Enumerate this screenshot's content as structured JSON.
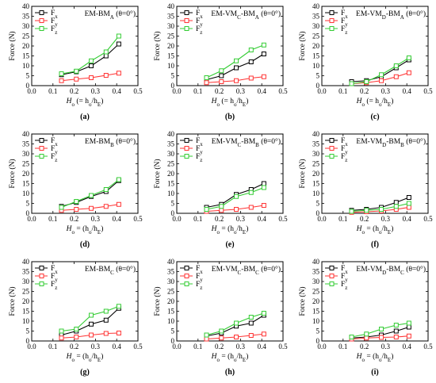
{
  "chart_data": [
    {
      "type": "line",
      "panel_label": "(a)",
      "title": "EM-BM",
      "title_sub": "A",
      "title_tail": " (θ=0°)",
      "ylabel": "Force (N)",
      "xlabel": "H",
      "xlabel_sub": "o",
      "xlabel_tail": " (= h",
      "xlabel_sub2": "o",
      "xlabel_tail2": "/h",
      "xlabel_sub3": "E",
      "xlabel_tail3": ")",
      "xlim": [
        0.0,
        0.5
      ],
      "ylim": [
        0,
        40
      ],
      "xticks": [
        "0.0",
        "0.1",
        "0.2",
        "0.3",
        "0.4",
        "0.5"
      ],
      "yticks": [
        "0",
        "5",
        "10",
        "15",
        "20",
        "25",
        "30",
        "35",
        "40"
      ],
      "legend_position": "top-left",
      "series": [
        {
          "name": "F",
          "sub": "x",
          "color": "#000000",
          "x": [
            0.14,
            0.21,
            0.28,
            0.35,
            0.41
          ],
          "y": [
            5.5,
            7.0,
            10.0,
            15.0,
            21.0
          ]
        },
        {
          "name": "F",
          "sub": "y",
          "color": "#ff3333",
          "x": [
            0.14,
            0.21,
            0.28,
            0.35,
            0.41
          ],
          "y": [
            2.5,
            3.3,
            4.0,
            5.2,
            6.3
          ]
        },
        {
          "name": "F",
          "sub": "z",
          "color": "#33cc33",
          "x": [
            0.14,
            0.21,
            0.28,
            0.35,
            0.41
          ],
          "y": [
            6.0,
            7.3,
            12.5,
            17.0,
            25.0
          ]
        }
      ]
    },
    {
      "type": "line",
      "panel_label": "(b)",
      "title": "EM-VM",
      "title_sub": "C",
      "title_tail": "-BM",
      "title_sub2": "A",
      "title_tail2": " (θ=0°)",
      "ylabel": "Force (N)",
      "xlabel": "H",
      "xlabel_sub": "o",
      "xlabel_tail": " (= h",
      "xlabel_sub2": "o",
      "xlabel_tail2": "/h",
      "xlabel_sub3": "E",
      "xlabel_tail3": ")",
      "xlim": [
        0.0,
        0.5
      ],
      "ylim": [
        0,
        40
      ],
      "xticks": [
        "0.0",
        "0.1",
        "0.2",
        "0.3",
        "0.4",
        "0.5"
      ],
      "yticks": [
        "0",
        "5",
        "10",
        "15",
        "20",
        "25",
        "30",
        "35",
        "40"
      ],
      "legend_position": "top-left",
      "series": [
        {
          "name": "F",
          "sub": "x",
          "color": "#000000",
          "x": [
            0.14,
            0.21,
            0.28,
            0.35,
            0.41
          ],
          "y": [
            3.0,
            5.0,
            9.0,
            12.0,
            16.0
          ]
        },
        {
          "name": "F",
          "sub": "y",
          "color": "#ff3333",
          "x": [
            0.14,
            0.21,
            0.28,
            0.35,
            0.41
          ],
          "y": [
            1.5,
            2.0,
            2.5,
            3.8,
            4.5
          ]
        },
        {
          "name": "F",
          "sub": "z",
          "color": "#33cc33",
          "x": [
            0.14,
            0.21,
            0.28,
            0.35,
            0.41
          ],
          "y": [
            4.0,
            7.5,
            12.5,
            18.0,
            20.5
          ]
        }
      ]
    },
    {
      "type": "line",
      "panel_label": "(c)",
      "title": "EM-VM",
      "title_sub": "D",
      "title_tail": "-BM",
      "title_sub2": "A",
      "title_tail2": " (θ=0°)",
      "ylabel": "Force (N)",
      "xlabel": "H",
      "xlabel_sub": "o",
      "xlabel_tail": " (= h",
      "xlabel_sub2": "o",
      "xlabel_tail2": "/h",
      "xlabel_sub3": "E",
      "xlabel_tail3": ")",
      "xlim": [
        0.0,
        0.5
      ],
      "ylim": [
        0,
        40
      ],
      "xticks": [
        "0.0",
        "0.1",
        "0.2",
        "0.3",
        "0.4",
        "0.5"
      ],
      "yticks": [
        "0",
        "5",
        "10",
        "15",
        "20",
        "25",
        "30",
        "35",
        "40"
      ],
      "legend_position": "top-left",
      "series": [
        {
          "name": "F",
          "sub": "x",
          "color": "#000000",
          "x": [
            0.14,
            0.21,
            0.28,
            0.35,
            0.41
          ],
          "y": [
            2.0,
            2.5,
            4.5,
            9.0,
            13.0
          ]
        },
        {
          "name": "F",
          "sub": "y",
          "color": "#ff3333",
          "x": [
            0.14,
            0.21,
            0.28,
            0.35,
            0.41
          ],
          "y": [
            1.0,
            1.5,
            2.5,
            4.5,
            6.5
          ]
        },
        {
          "name": "F",
          "sub": "z",
          "color": "#33cc33",
          "x": [
            0.14,
            0.21,
            0.28,
            0.35,
            0.41
          ],
          "y": [
            1.0,
            2.0,
            5.5,
            10.0,
            14.0
          ]
        }
      ]
    },
    {
      "type": "line",
      "panel_label": "(d)",
      "title": "EM-BM",
      "title_sub": "B",
      "title_tail": " (θ=0°)",
      "ylabel": "Force (N)",
      "xlabel": "H",
      "xlabel_sub": "o",
      "xlabel_tail": " = (h",
      "xlabel_sub2": "o",
      "xlabel_tail2": "/h",
      "xlabel_sub3": "E",
      "xlabel_tail3": ")",
      "xlim": [
        0.0,
        0.5
      ],
      "ylim": [
        0,
        40
      ],
      "xticks": [
        "0.0",
        "0.1",
        "0.2",
        "0.3",
        "0.4",
        "0.5"
      ],
      "yticks": [
        "0",
        "5",
        "10",
        "15",
        "20",
        "25",
        "30",
        "35",
        "40"
      ],
      "legend_position": "top-left",
      "series": [
        {
          "name": "F",
          "sub": "x",
          "color": "#000000",
          "x": [
            0.14,
            0.21,
            0.28,
            0.35,
            0.41
          ],
          "y": [
            3.5,
            5.5,
            8.5,
            11.0,
            16.5
          ]
        },
        {
          "name": "F",
          "sub": "y",
          "color": "#ff3333",
          "x": [
            0.14,
            0.21,
            0.28,
            0.35,
            0.41
          ],
          "y": [
            1.5,
            2.0,
            2.5,
            3.5,
            4.5
          ]
        },
        {
          "name": "F",
          "sub": "z",
          "color": "#33cc33",
          "x": [
            0.14,
            0.21,
            0.28,
            0.35,
            0.41
          ],
          "y": [
            3.0,
            6.0,
            9.0,
            12.0,
            17.0
          ]
        }
      ]
    },
    {
      "type": "line",
      "panel_label": "(e)",
      "title": "EM-VM",
      "title_sub": "C",
      "title_tail": "-BM",
      "title_sub2": "B",
      "title_tail2": " (θ=0°)",
      "ylabel": "Force (N)",
      "xlabel": "H",
      "xlabel_sub": "o",
      "xlabel_tail": " = (h",
      "xlabel_sub2": "o",
      "xlabel_tail2": "/h",
      "xlabel_sub3": "E",
      "xlabel_tail3": ")",
      "xlim": [
        0.0,
        0.5
      ],
      "ylim": [
        0,
        40
      ],
      "xticks": [
        "0.0",
        "0.1",
        "0.2",
        "0.3",
        "0.4",
        "0.5"
      ],
      "yticks": [
        "0",
        "5",
        "10",
        "15",
        "20",
        "25",
        "30",
        "35",
        "40"
      ],
      "legend_position": "top-left",
      "series": [
        {
          "name": "F",
          "sub": "x",
          "color": "#000000",
          "x": [
            0.14,
            0.21,
            0.28,
            0.35,
            0.41
          ],
          "y": [
            3.0,
            4.5,
            9.5,
            12.0,
            15.0
          ]
        },
        {
          "name": "F",
          "sub": "y",
          "color": "#ff3333",
          "x": [
            0.14,
            0.21,
            0.28,
            0.35,
            0.41
          ],
          "y": [
            1.0,
            1.5,
            2.0,
            3.0,
            4.0
          ]
        },
        {
          "name": "F",
          "sub": "z",
          "color": "#33cc33",
          "x": [
            0.14,
            0.21,
            0.28,
            0.35,
            0.41
          ],
          "y": [
            2.0,
            3.5,
            8.5,
            10.5,
            13.0
          ]
        }
      ]
    },
    {
      "type": "line",
      "panel_label": "(f)",
      "title": "EM-VM",
      "title_sub": "D",
      "title_tail": "-BM",
      "title_sub2": "B",
      "title_tail2": " (θ=0°)",
      "ylabel": "Force (N)",
      "xlabel": "H",
      "xlabel_sub": "o",
      "xlabel_tail": " = (h",
      "xlabel_sub2": "o",
      "xlabel_tail2": "/h",
      "xlabel_sub3": "E",
      "xlabel_tail3": ")",
      "xlim": [
        0.0,
        0.5
      ],
      "ylim": [
        0,
        40
      ],
      "xticks": [
        "0.0",
        "0.1",
        "0.2",
        "0.3",
        "0.4",
        "0.5"
      ],
      "yticks": [
        "0",
        "5",
        "10",
        "15",
        "20",
        "25",
        "30",
        "35",
        "40"
      ],
      "legend_position": "top-left",
      "series": [
        {
          "name": "F",
          "sub": "x",
          "color": "#000000",
          "x": [
            0.14,
            0.21,
            0.28,
            0.35,
            0.41
          ],
          "y": [
            1.5,
            2.0,
            3.0,
            5.5,
            8.0
          ]
        },
        {
          "name": "F",
          "sub": "y",
          "color": "#ff3333",
          "x": [
            0.14,
            0.21,
            0.28,
            0.35,
            0.41
          ],
          "y": [
            0.5,
            0.8,
            1.2,
            2.0,
            3.0
          ]
        },
        {
          "name": "F",
          "sub": "z",
          "color": "#33cc33",
          "x": [
            0.14,
            0.21,
            0.28,
            0.35,
            0.41
          ],
          "y": [
            1.0,
            1.5,
            2.0,
            3.5,
            5.0
          ]
        }
      ]
    },
    {
      "type": "line",
      "panel_label": "(g)",
      "title": "EM-BM",
      "title_sub": "C",
      "title_tail": " (θ=0°)",
      "ylabel": "Force (N)",
      "xlabel": "H",
      "xlabel_sub": "o",
      "xlabel_tail": " = (h",
      "xlabel_sub2": "o",
      "xlabel_tail2": "/h",
      "xlabel_sub3": "E",
      "xlabel_tail3": ")",
      "xlim": [
        0.0,
        0.5
      ],
      "ylim": [
        0,
        40
      ],
      "xticks": [
        "0.0",
        "0.1",
        "0.2",
        "0.3",
        "0.4",
        "0.5"
      ],
      "yticks": [
        "0",
        "5",
        "10",
        "15",
        "20",
        "25",
        "30",
        "35",
        "40"
      ],
      "legend_position": "top-left",
      "series": [
        {
          "name": "F",
          "sub": "x",
          "color": "#000000",
          "x": [
            0.14,
            0.21,
            0.28,
            0.35,
            0.41
          ],
          "y": [
            3.0,
            5.0,
            8.5,
            10.5,
            16.5
          ]
        },
        {
          "name": "F",
          "sub": "y",
          "color": "#ff3333",
          "x": [
            0.14,
            0.21,
            0.28,
            0.35,
            0.41
          ],
          "y": [
            1.5,
            2.0,
            3.0,
            3.8,
            4.0
          ]
        },
        {
          "name": "F",
          "sub": "z",
          "color": "#33cc33",
          "x": [
            0.14,
            0.21,
            0.28,
            0.35,
            0.41
          ],
          "y": [
            5.0,
            6.0,
            13.0,
            15.0,
            17.5
          ]
        }
      ]
    },
    {
      "type": "line",
      "panel_label": "(h)",
      "title": "EM-VM",
      "title_sub": "C",
      "title_tail": "-BM",
      "title_sub2": "C",
      "title_tail2": " (θ=0°)",
      "ylabel": "Force (N)",
      "xlabel": "H",
      "xlabel_sub": "o",
      "xlabel_tail": " = (h",
      "xlabel_sub2": "o",
      "xlabel_tail2": "/h",
      "xlabel_sub3": "E",
      "xlabel_tail3": ")",
      "xlim": [
        0.0,
        0.5
      ],
      "ylim": [
        0,
        40
      ],
      "xticks": [
        "0.0",
        "0.1",
        "0.2",
        "0.3",
        "0.4",
        "0.5"
      ],
      "yticks": [
        "0",
        "5",
        "10",
        "15",
        "20",
        "25",
        "30",
        "35",
        "40"
      ],
      "legend_position": "top-left",
      "series": [
        {
          "name": "F",
          "sub": "x",
          "color": "#000000",
          "x": [
            0.14,
            0.21,
            0.28,
            0.35,
            0.41
          ],
          "y": [
            2.5,
            4.0,
            7.5,
            9.0,
            13.0
          ]
        },
        {
          "name": "F",
          "sub": "y",
          "color": "#ff3333",
          "x": [
            0.14,
            0.21,
            0.28,
            0.35,
            0.41
          ],
          "y": [
            1.0,
            1.5,
            2.0,
            2.8,
            3.5
          ]
        },
        {
          "name": "F",
          "sub": "z",
          "color": "#33cc33",
          "x": [
            0.14,
            0.21,
            0.28,
            0.35,
            0.41
          ],
          "y": [
            3.0,
            5.0,
            9.0,
            12.0,
            14.0
          ]
        }
      ]
    },
    {
      "type": "line",
      "panel_label": "(i)",
      "title": "EM-VM",
      "title_sub": "D",
      "title_tail": "-BM",
      "title_sub2": "C",
      "title_tail2": " (θ=0°)",
      "ylabel": "Force (N)",
      "xlabel": "H",
      "xlabel_sub": "o",
      "xlabel_tail": " = (h",
      "xlabel_sub2": "o",
      "xlabel_tail2": "/h",
      "xlabel_sub3": "E",
      "xlabel_tail3": ")",
      "xlim": [
        0.0,
        0.5
      ],
      "ylim": [
        0,
        40
      ],
      "xticks": [
        "0.0",
        "0.1",
        "0.2",
        "0.3",
        "0.4",
        "0.5"
      ],
      "yticks": [
        "0",
        "5",
        "10",
        "15",
        "20",
        "25",
        "30",
        "35",
        "40"
      ],
      "legend_position": "top-left",
      "series": [
        {
          "name": "F",
          "sub": "x",
          "color": "#000000",
          "x": [
            0.14,
            0.21,
            0.28,
            0.35,
            0.41
          ],
          "y": [
            1.5,
            2.0,
            3.0,
            5.0,
            7.0
          ]
        },
        {
          "name": "F",
          "sub": "y",
          "color": "#ff3333",
          "x": [
            0.14,
            0.21,
            0.28,
            0.35,
            0.41
          ],
          "y": [
            1.0,
            1.5,
            1.8,
            2.0,
            2.5
          ]
        },
        {
          "name": "F",
          "sub": "z",
          "color": "#33cc33",
          "x": [
            0.14,
            0.21,
            0.28,
            0.35,
            0.41
          ],
          "y": [
            2.0,
            3.5,
            6.0,
            8.0,
            9.0
          ]
        }
      ]
    }
  ]
}
